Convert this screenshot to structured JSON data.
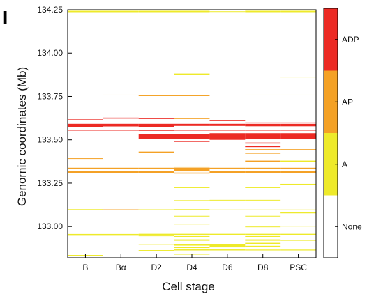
{
  "panel_label": "I",
  "colors": {
    "None": "#ffffff",
    "A": "#eeea2a",
    "AP": "#f4a125",
    "ADP": "#ec2a24",
    "frame": "#000000"
  },
  "chart_data": {
    "type": "heatmap",
    "xlabel": "Cell stage",
    "ylabel": "Genomic coordinates (Mb)",
    "categories": [
      "B",
      "Bα",
      "D2",
      "D4",
      "D6",
      "D8",
      "PSC"
    ],
    "ylim": [
      132.82,
      134.25
    ],
    "yticks": [
      133.0,
      133.25,
      133.5,
      133.75,
      134.0,
      134.25
    ],
    "ytick_labels": [
      "133.00",
      "133.25",
      "133.50",
      "133.75",
      "134.00",
      "134.25"
    ],
    "grid": false,
    "legend": {
      "placement": "right",
      "type": "colorbar",
      "levels": [
        "None",
        "A",
        "AP",
        "ADP"
      ]
    },
    "segments": [
      {
        "stage": "B",
        "y0": 134.236,
        "y1": 134.244,
        "level": "A"
      },
      {
        "stage": "B",
        "y0": 133.612,
        "y1": 133.618,
        "level": "ADP"
      },
      {
        "stage": "B",
        "y0": 133.575,
        "y1": 133.592,
        "level": "ADP"
      },
      {
        "stage": "B",
        "y0": 133.553,
        "y1": 133.558,
        "level": "ADP"
      },
      {
        "stage": "B",
        "y0": 133.386,
        "y1": 133.394,
        "level": "AP"
      },
      {
        "stage": "B",
        "y0": 133.333,
        "y1": 133.339,
        "level": "AP"
      },
      {
        "stage": "B",
        "y0": 133.31,
        "y1": 133.318,
        "level": "AP"
      },
      {
        "stage": "B",
        "y0": 133.096,
        "y1": 133.1,
        "level": "A"
      },
      {
        "stage": "B",
        "y0": 132.947,
        "y1": 132.957,
        "level": "A"
      },
      {
        "stage": "B",
        "y0": 132.83,
        "y1": 132.836,
        "level": "A"
      },
      {
        "stage": "Bα",
        "y0": 134.236,
        "y1": 134.244,
        "level": "A"
      },
      {
        "stage": "Bα",
        "y0": 133.756,
        "y1": 133.76,
        "level": "AP"
      },
      {
        "stage": "Bα",
        "y0": 133.622,
        "y1": 133.628,
        "level": "ADP"
      },
      {
        "stage": "Bα",
        "y0": 133.577,
        "y1": 133.592,
        "level": "ADP"
      },
      {
        "stage": "Bα",
        "y0": 133.553,
        "y1": 133.558,
        "level": "ADP"
      },
      {
        "stage": "Bα",
        "y0": 133.333,
        "y1": 133.339,
        "level": "AP"
      },
      {
        "stage": "Bα",
        "y0": 133.31,
        "y1": 133.318,
        "level": "AP"
      },
      {
        "stage": "Bα",
        "y0": 133.094,
        "y1": 133.099,
        "level": "AP"
      },
      {
        "stage": "Bα",
        "y0": 132.947,
        "y1": 132.957,
        "level": "A"
      },
      {
        "stage": "D2",
        "y0": 134.236,
        "y1": 134.244,
        "level": "A"
      },
      {
        "stage": "D2",
        "y0": 133.752,
        "y1": 133.758,
        "level": "AP"
      },
      {
        "stage": "D2",
        "y0": 133.62,
        "y1": 133.626,
        "level": "ADP"
      },
      {
        "stage": "D2",
        "y0": 133.575,
        "y1": 133.592,
        "level": "ADP"
      },
      {
        "stage": "D2",
        "y0": 133.552,
        "y1": 133.558,
        "level": "ADP"
      },
      {
        "stage": "D2",
        "y0": 133.505,
        "y1": 133.535,
        "level": "ADP"
      },
      {
        "stage": "D2",
        "y0": 133.426,
        "y1": 133.432,
        "level": "AP"
      },
      {
        "stage": "D2",
        "y0": 133.333,
        "y1": 133.339,
        "level": "AP"
      },
      {
        "stage": "D2",
        "y0": 133.31,
        "y1": 133.318,
        "level": "AP"
      },
      {
        "stage": "D2",
        "y0": 133.094,
        "y1": 133.099,
        "level": "A"
      },
      {
        "stage": "D2",
        "y0": 132.952,
        "y1": 132.958,
        "level": "A"
      },
      {
        "stage": "D2",
        "y0": 132.944,
        "y1": 132.948,
        "level": "A"
      },
      {
        "stage": "D2",
        "y0": 132.895,
        "y1": 132.9,
        "level": "A"
      },
      {
        "stage": "D2",
        "y0": 132.858,
        "y1": 132.864,
        "level": "A"
      },
      {
        "stage": "D4",
        "y0": 134.236,
        "y1": 134.244,
        "level": "A"
      },
      {
        "stage": "D4",
        "y0": 133.875,
        "y1": 133.882,
        "level": "A"
      },
      {
        "stage": "D4",
        "y0": 133.752,
        "y1": 133.758,
        "level": "AP"
      },
      {
        "stage": "D4",
        "y0": 133.62,
        "y1": 133.626,
        "level": "AP"
      },
      {
        "stage": "D4",
        "y0": 133.58,
        "y1": 133.592,
        "level": "ADP"
      },
      {
        "stage": "D4",
        "y0": 133.553,
        "y1": 133.558,
        "level": "ADP"
      },
      {
        "stage": "D4",
        "y0": 133.505,
        "y1": 133.535,
        "level": "ADP"
      },
      {
        "stage": "D4",
        "y0": 133.488,
        "y1": 133.494,
        "level": "ADP"
      },
      {
        "stage": "D4",
        "y0": 133.346,
        "y1": 133.35,
        "level": "A"
      },
      {
        "stage": "D4",
        "y0": 133.318,
        "y1": 133.34,
        "level": "AP"
      },
      {
        "stage": "D4",
        "y0": 133.305,
        "y1": 133.311,
        "level": "AP"
      },
      {
        "stage": "D4",
        "y0": 133.222,
        "y1": 133.226,
        "level": "A"
      },
      {
        "stage": "D4",
        "y0": 133.148,
        "y1": 133.152,
        "level": "A"
      },
      {
        "stage": "D4",
        "y0": 133.096,
        "y1": 133.1,
        "level": "A"
      },
      {
        "stage": "D4",
        "y0": 133.058,
        "y1": 133.062,
        "level": "A"
      },
      {
        "stage": "D4",
        "y0": 133.012,
        "y1": 133.016,
        "level": "A"
      },
      {
        "stage": "D4",
        "y0": 132.952,
        "y1": 132.958,
        "level": "A"
      },
      {
        "stage": "D4",
        "y0": 132.94,
        "y1": 132.945,
        "level": "A"
      },
      {
        "stage": "D4",
        "y0": 132.918,
        "y1": 132.926,
        "level": "A"
      },
      {
        "stage": "D4",
        "y0": 132.89,
        "y1": 132.9,
        "level": "A"
      },
      {
        "stage": "D4",
        "y0": 132.876,
        "y1": 132.884,
        "level": "A"
      },
      {
        "stage": "D4",
        "y0": 132.862,
        "y1": 132.868,
        "level": "A"
      },
      {
        "stage": "D4",
        "y0": 132.838,
        "y1": 132.843,
        "level": "A"
      },
      {
        "stage": "D6",
        "y0": 134.237,
        "y1": 134.241,
        "level": "A"
      },
      {
        "stage": "D6",
        "y0": 133.608,
        "y1": 133.612,
        "level": "ADP"
      },
      {
        "stage": "D6",
        "y0": 133.58,
        "y1": 133.592,
        "level": "ADP"
      },
      {
        "stage": "D6",
        "y0": 133.553,
        "y1": 133.558,
        "level": "ADP"
      },
      {
        "stage": "D6",
        "y0": 133.5,
        "y1": 133.538,
        "level": "ADP"
      },
      {
        "stage": "D6",
        "y0": 133.333,
        "y1": 133.339,
        "level": "AP"
      },
      {
        "stage": "D6",
        "y0": 133.31,
        "y1": 133.318,
        "level": "AP"
      },
      {
        "stage": "D6",
        "y0": 133.15,
        "y1": 133.154,
        "level": "A"
      },
      {
        "stage": "D6",
        "y0": 133.094,
        "y1": 133.098,
        "level": "A"
      },
      {
        "stage": "D6",
        "y0": 132.952,
        "y1": 132.958,
        "level": "A"
      },
      {
        "stage": "D6",
        "y0": 132.88,
        "y1": 132.9,
        "level": "A"
      },
      {
        "stage": "D6",
        "y0": 132.862,
        "y1": 132.868,
        "level": "A"
      },
      {
        "stage": "D8",
        "y0": 134.236,
        "y1": 134.244,
        "level": "A"
      },
      {
        "stage": "D8",
        "y0": 133.756,
        "y1": 133.76,
        "level": "A"
      },
      {
        "stage": "D8",
        "y0": 133.596,
        "y1": 133.6,
        "level": "ADP"
      },
      {
        "stage": "D8",
        "y0": 133.578,
        "y1": 133.592,
        "level": "ADP"
      },
      {
        "stage": "D8",
        "y0": 133.553,
        "y1": 133.558,
        "level": "ADP"
      },
      {
        "stage": "D8",
        "y0": 133.505,
        "y1": 133.538,
        "level": "ADP"
      },
      {
        "stage": "D8",
        "y0": 133.478,
        "y1": 133.484,
        "level": "ADP"
      },
      {
        "stage": "D8",
        "y0": 133.458,
        "y1": 133.464,
        "level": "ADP"
      },
      {
        "stage": "D8",
        "y0": 133.44,
        "y1": 133.446,
        "level": "AP"
      },
      {
        "stage": "D8",
        "y0": 133.42,
        "y1": 133.426,
        "level": "AP"
      },
      {
        "stage": "D8",
        "y0": 133.374,
        "y1": 133.38,
        "level": "AP"
      },
      {
        "stage": "D8",
        "y0": 133.333,
        "y1": 133.339,
        "level": "AP"
      },
      {
        "stage": "D8",
        "y0": 133.31,
        "y1": 133.318,
        "level": "AP"
      },
      {
        "stage": "D8",
        "y0": 133.222,
        "y1": 133.226,
        "level": "A"
      },
      {
        "stage": "D8",
        "y0": 133.15,
        "y1": 133.154,
        "level": "A"
      },
      {
        "stage": "D8",
        "y0": 133.094,
        "y1": 133.098,
        "level": "A"
      },
      {
        "stage": "D8",
        "y0": 133.058,
        "y1": 133.062,
        "level": "A"
      },
      {
        "stage": "D8",
        "y0": 132.996,
        "y1": 133.0,
        "level": "A"
      },
      {
        "stage": "D8",
        "y0": 132.952,
        "y1": 132.958,
        "level": "A"
      },
      {
        "stage": "D8",
        "y0": 132.94,
        "y1": 132.945,
        "level": "A"
      },
      {
        "stage": "D8",
        "y0": 132.918,
        "y1": 132.926,
        "level": "A"
      },
      {
        "stage": "D8",
        "y0": 132.9,
        "y1": 132.906,
        "level": "A"
      },
      {
        "stage": "D8",
        "y0": 132.884,
        "y1": 132.889,
        "level": "A"
      },
      {
        "stage": "D8",
        "y0": 132.862,
        "y1": 132.867,
        "level": "A"
      },
      {
        "stage": "PSC",
        "y0": 134.236,
        "y1": 134.244,
        "level": "A"
      },
      {
        "stage": "PSC",
        "y0": 133.86,
        "y1": 133.864,
        "level": "A"
      },
      {
        "stage": "PSC",
        "y0": 133.756,
        "y1": 133.76,
        "level": "A"
      },
      {
        "stage": "PSC",
        "y0": 133.596,
        "y1": 133.6,
        "level": "ADP"
      },
      {
        "stage": "PSC",
        "y0": 133.578,
        "y1": 133.592,
        "level": "ADP"
      },
      {
        "stage": "PSC",
        "y0": 133.553,
        "y1": 133.558,
        "level": "ADP"
      },
      {
        "stage": "PSC",
        "y0": 133.505,
        "y1": 133.538,
        "level": "ADP"
      },
      {
        "stage": "PSC",
        "y0": 133.44,
        "y1": 133.446,
        "level": "AP"
      },
      {
        "stage": "PSC",
        "y0": 133.374,
        "y1": 133.38,
        "level": "A"
      },
      {
        "stage": "PSC",
        "y0": 133.333,
        "y1": 133.339,
        "level": "AP"
      },
      {
        "stage": "PSC",
        "y0": 133.31,
        "y1": 133.318,
        "level": "AP"
      },
      {
        "stage": "PSC",
        "y0": 133.24,
        "y1": 133.246,
        "level": "A"
      },
      {
        "stage": "PSC",
        "y0": 133.094,
        "y1": 133.098,
        "level": "A"
      },
      {
        "stage": "PSC",
        "y0": 133.076,
        "y1": 133.081,
        "level": "A"
      },
      {
        "stage": "PSC",
        "y0": 133.0,
        "y1": 133.004,
        "level": "A"
      },
      {
        "stage": "PSC",
        "y0": 132.952,
        "y1": 132.958,
        "level": "A"
      },
      {
        "stage": "PSC",
        "y0": 132.918,
        "y1": 132.922,
        "level": "A"
      },
      {
        "stage": "PSC",
        "y0": 132.862,
        "y1": 132.867,
        "level": "A"
      }
    ]
  }
}
